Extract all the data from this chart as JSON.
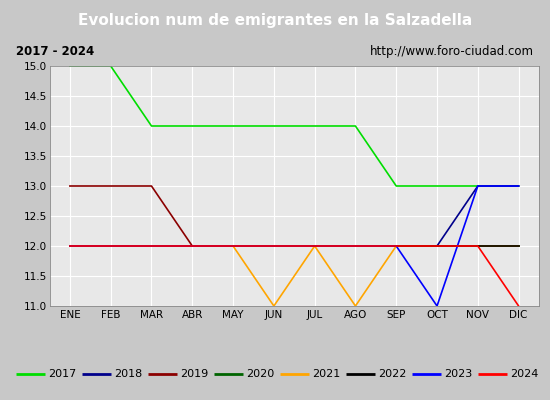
{
  "title": "Evolucion num de emigrantes en la Salzadella",
  "subtitle_left": "2017 - 2024",
  "subtitle_right": "http://www.foro-ciudad.com",
  "ylim": [
    11.0,
    15.0
  ],
  "yticks": [
    11.0,
    11.5,
    12.0,
    12.5,
    13.0,
    13.5,
    14.0,
    14.5,
    15.0
  ],
  "months": [
    "ENE",
    "FEB",
    "MAR",
    "ABR",
    "MAY",
    "JUN",
    "JUL",
    "AGO",
    "SEP",
    "OCT",
    "NOV",
    "DIC"
  ],
  "month_indices": [
    1,
    2,
    3,
    4,
    5,
    6,
    7,
    8,
    9,
    10,
    11,
    12
  ],
  "series": {
    "2017": {
      "color": "#00dd00",
      "data": [
        [
          1,
          15.0
        ],
        [
          2,
          15.0
        ],
        [
          3,
          14.0
        ],
        [
          4,
          14.0
        ],
        [
          5,
          14.0
        ],
        [
          6,
          14.0
        ],
        [
          7,
          14.0
        ],
        [
          8,
          14.0
        ],
        [
          9,
          13.0
        ],
        [
          10,
          13.0
        ],
        [
          11,
          13.0
        ],
        [
          12,
          13.0
        ]
      ]
    },
    "2018": {
      "color": "#00008b",
      "data": [
        [
          1,
          12.0
        ],
        [
          2,
          12.0
        ],
        [
          3,
          12.0
        ],
        [
          4,
          12.0
        ],
        [
          5,
          12.0
        ],
        [
          6,
          12.0
        ],
        [
          7,
          12.0
        ],
        [
          8,
          12.0
        ],
        [
          9,
          12.0
        ],
        [
          10,
          12.0
        ],
        [
          11,
          13.0
        ],
        [
          12,
          13.0
        ]
      ]
    },
    "2019": {
      "color": "#8b0000",
      "data": [
        [
          1,
          13.0
        ],
        [
          2,
          13.0
        ],
        [
          3,
          13.0
        ],
        [
          4,
          12.0
        ],
        [
          5,
          12.0
        ],
        [
          6,
          12.0
        ],
        [
          7,
          12.0
        ],
        [
          8,
          12.0
        ],
        [
          9,
          12.0
        ],
        [
          10,
          12.0
        ],
        [
          11,
          12.0
        ],
        [
          12,
          12.0
        ]
      ]
    },
    "2020": {
      "color": "#006400",
      "data": [
        [
          1,
          12.0
        ],
        [
          2,
          12.0
        ],
        [
          3,
          12.0
        ],
        [
          4,
          12.0
        ],
        [
          5,
          12.0
        ],
        [
          6,
          12.0
        ],
        [
          7,
          12.0
        ],
        [
          8,
          12.0
        ],
        [
          9,
          12.0
        ],
        [
          10,
          12.0
        ],
        [
          11,
          12.0
        ],
        [
          12,
          12.0
        ]
      ]
    },
    "2021": {
      "color": "#ffa500",
      "data": [
        [
          1,
          12.0
        ],
        [
          2,
          12.0
        ],
        [
          3,
          12.0
        ],
        [
          4,
          12.0
        ],
        [
          5,
          12.0
        ],
        [
          6,
          11.0
        ],
        [
          7,
          12.0
        ],
        [
          8,
          11.0
        ],
        [
          9,
          12.0
        ],
        [
          10,
          12.0
        ],
        [
          11,
          12.0
        ],
        [
          12,
          12.0
        ]
      ]
    },
    "2022": {
      "color": "#000000",
      "data": [
        [
          1,
          12.0
        ],
        [
          2,
          12.0
        ],
        [
          3,
          12.0
        ],
        [
          4,
          12.0
        ],
        [
          5,
          12.0
        ],
        [
          6,
          12.0
        ],
        [
          7,
          12.0
        ],
        [
          8,
          12.0
        ],
        [
          9,
          12.0
        ],
        [
          10,
          12.0
        ],
        [
          11,
          12.0
        ],
        [
          12,
          12.0
        ]
      ]
    },
    "2023": {
      "color": "#0000ff",
      "data": [
        [
          1,
          12.0
        ],
        [
          2,
          12.0
        ],
        [
          3,
          12.0
        ],
        [
          4,
          12.0
        ],
        [
          5,
          12.0
        ],
        [
          6,
          12.0
        ],
        [
          7,
          12.0
        ],
        [
          8,
          12.0
        ],
        [
          9,
          12.0
        ],
        [
          10,
          11.0
        ],
        [
          11,
          13.0
        ],
        [
          12,
          13.0
        ]
      ]
    },
    "2024": {
      "color": "#ff0000",
      "data": [
        [
          1,
          12.0
        ],
        [
          2,
          12.0
        ],
        [
          3,
          12.0
        ],
        [
          4,
          12.0
        ],
        [
          5,
          12.0
        ],
        [
          6,
          12.0
        ],
        [
          7,
          12.0
        ],
        [
          8,
          12.0
        ],
        [
          9,
          12.0
        ],
        [
          10,
          12.0
        ],
        [
          11,
          12.0
        ],
        [
          12,
          11.0
        ]
      ]
    }
  },
  "title_bg_color": "#4d8fcc",
  "title_text_color": "#ffffff",
  "plot_bg_color": "#e8e8e8",
  "box_bg_color": "#ffffff",
  "grid_color": "#ffffff",
  "legend_bg_color": "#ffffff",
  "fig_bg_color": "#c8c8c8"
}
